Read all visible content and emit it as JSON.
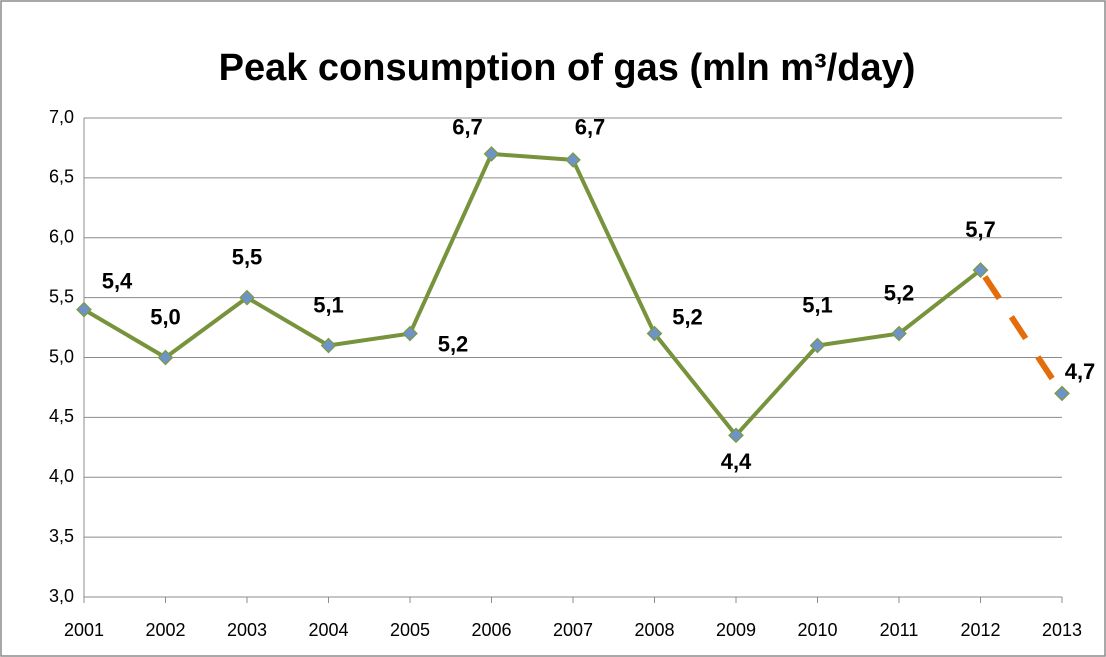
{
  "chart_data": {
    "type": "line",
    "title": "Peak consumption of gas (mln m³/day)",
    "x": [
      2001,
      2002,
      2003,
      2004,
      2005,
      2006,
      2007,
      2008,
      2009,
      2010,
      2011,
      2012,
      2013
    ],
    "xlim": [
      2001,
      2013
    ],
    "xticks": [
      2001,
      2002,
      2003,
      2004,
      2005,
      2006,
      2007,
      2008,
      2009,
      2010,
      2011,
      2012,
      2013
    ],
    "ylim": [
      3,
      7
    ],
    "yticks": [
      {
        "value": 3,
        "label": "3,0"
      },
      {
        "value": 3.5,
        "label": "3,5"
      },
      {
        "value": 4,
        "label": "4,0"
      },
      {
        "value": 4.5,
        "label": "4,5"
      },
      {
        "value": 5,
        "label": "5,0"
      },
      {
        "value": 5.5,
        "label": "5,5"
      },
      {
        "value": 6,
        "label": "6,0"
      },
      {
        "value": 6.5,
        "label": "6,5"
      },
      {
        "value": 7,
        "label": "7,0"
      }
    ],
    "grid": true,
    "marker_color": "#6f93c9",
    "series": [
      {
        "color": "#77933c",
        "dashed": false,
        "values": [
          5.4,
          5.0,
          5.5,
          5.1,
          5.2,
          6.7,
          6.65,
          5.2,
          4.35,
          5.1,
          5.2,
          5.73,
          null
        ],
        "value_labels": [
          "5,4",
          "5,0",
          "5,5",
          "5,1",
          "5,2",
          "6,7",
          "6,7",
          "5,2",
          "4,4",
          "5,1",
          "5,2",
          "5,7",
          null
        ]
      },
      {
        "color": "#e46c0a",
        "dashed": true,
        "values": [
          null,
          null,
          null,
          null,
          null,
          null,
          null,
          null,
          null,
          null,
          null,
          5.73,
          4.7
        ],
        "value_labels": [
          null,
          null,
          null,
          null,
          null,
          null,
          null,
          null,
          null,
          null,
          null,
          null,
          "4,7"
        ]
      }
    ]
  }
}
